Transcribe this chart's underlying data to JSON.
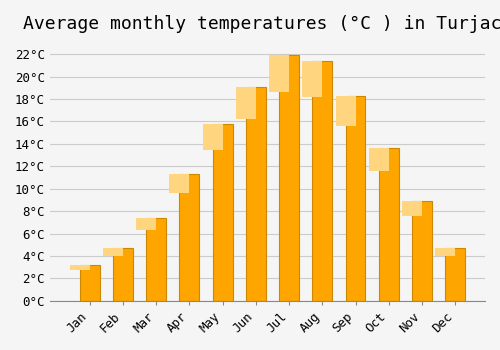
{
  "title": "Average monthly temperatures (°C ) in Turjaci",
  "months": [
    "Jan",
    "Feb",
    "Mar",
    "Apr",
    "May",
    "Jun",
    "Jul",
    "Aug",
    "Sep",
    "Oct",
    "Nov",
    "Dec"
  ],
  "values": [
    3.2,
    4.7,
    7.4,
    11.3,
    15.8,
    19.1,
    21.9,
    21.4,
    18.3,
    13.6,
    8.9,
    4.7
  ],
  "bar_color": "#FFA500",
  "bar_edge_color": "#CC8800",
  "background_color": "#F5F5F5",
  "grid_color": "#CCCCCC",
  "ylim": [
    0,
    23
  ],
  "yticks": [
    0,
    2,
    4,
    6,
    8,
    10,
    12,
    14,
    16,
    18,
    20,
    22
  ],
  "title_fontsize": 13,
  "tick_fontsize": 9,
  "font_family": "monospace"
}
